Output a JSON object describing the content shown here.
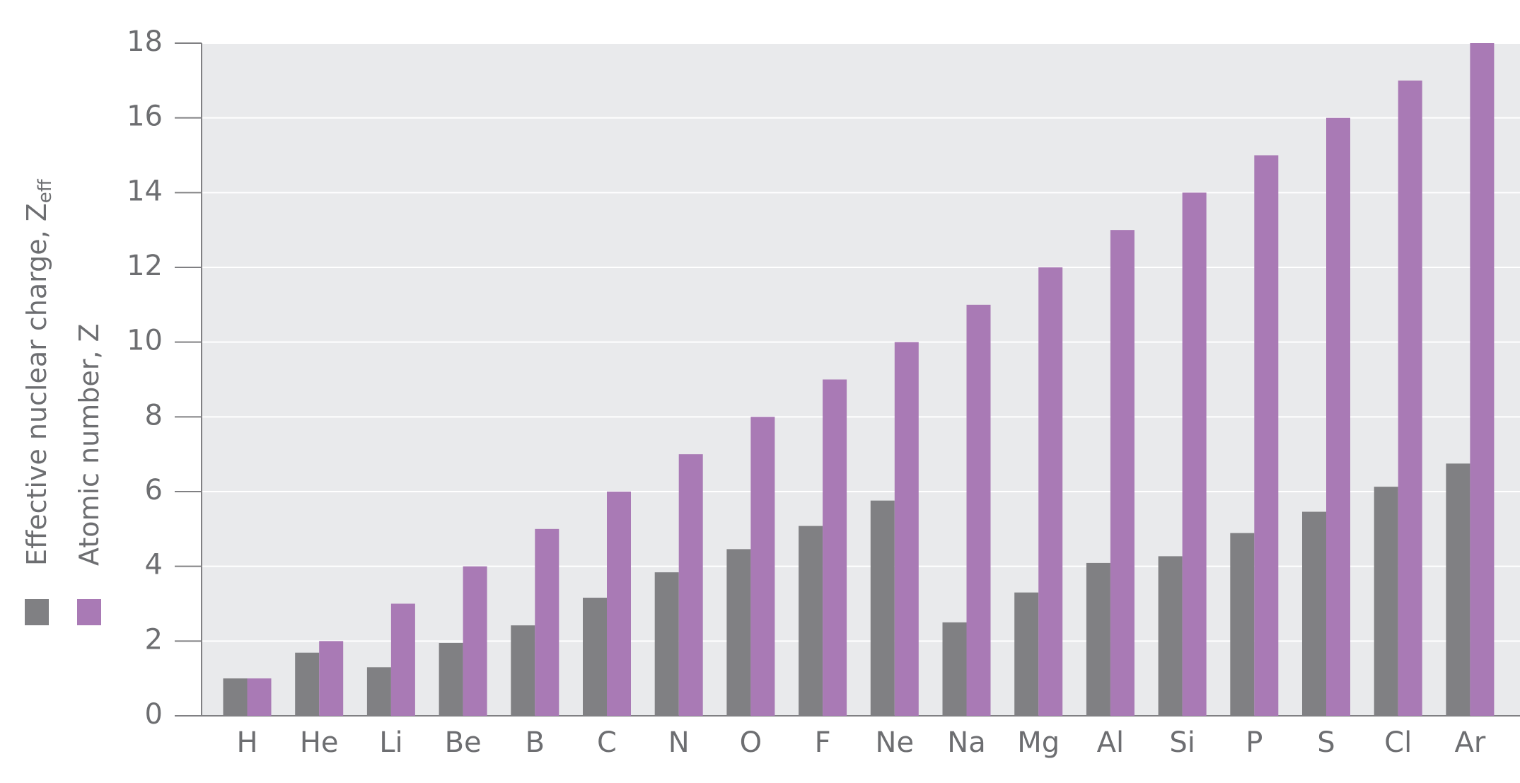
{
  "chart_data": {
    "type": "bar",
    "categories": [
      "H",
      "He",
      "Li",
      "Be",
      "B",
      "C",
      "N",
      "O",
      "F",
      "Ne",
      "Na",
      "Mg",
      "Al",
      "Si",
      "P",
      "S",
      "Cl",
      "Ar"
    ],
    "series": [
      {
        "name": "Effective nuclear charge, Z",
        "name_subscript": "eff",
        "color": "#808083",
        "values": [
          1.0,
          1.69,
          1.3,
          1.95,
          2.42,
          3.16,
          3.84,
          4.46,
          5.08,
          5.76,
          2.5,
          3.3,
          4.09,
          4.27,
          4.89,
          5.46,
          6.13,
          6.75
        ]
      },
      {
        "name": "Atomic number, Z",
        "color": "#a97ab5",
        "values": [
          1,
          2,
          3,
          4,
          5,
          6,
          7,
          8,
          9,
          10,
          11,
          12,
          13,
          14,
          15,
          16,
          17,
          18
        ]
      }
    ],
    "ylim": [
      0,
      18
    ],
    "yticks": [
      0,
      2,
      4,
      6,
      8,
      10,
      12,
      14,
      16,
      18
    ],
    "grid": true
  }
}
